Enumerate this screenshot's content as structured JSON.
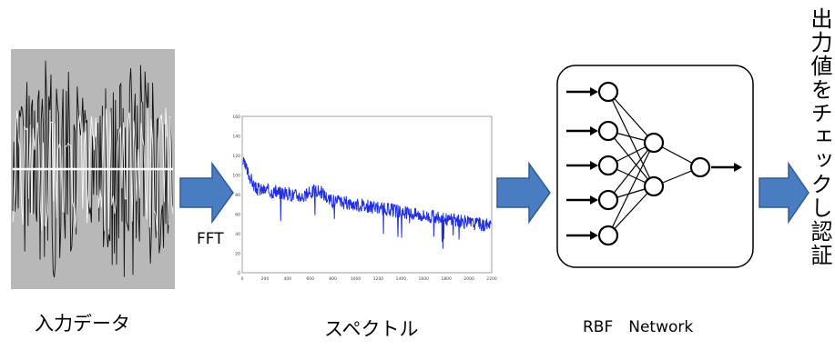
{
  "pipeline": {
    "input_label": "入力データ",
    "fft_label": "FFT",
    "spectrum_label": "スペクトル",
    "network_label": "RBF　Network",
    "output_label": "出力値をチェックし認証"
  },
  "spectrum_plot": {
    "y_ticks": [
      "160",
      "140",
      "120",
      "100",
      "80",
      "60",
      "40",
      "20",
      "0"
    ],
    "x_ticks": [
      "0",
      "200",
      "400",
      "600",
      "800",
      "1000",
      "1200",
      "1400",
      "1600",
      "1800",
      "2000",
      "2200"
    ]
  },
  "colors": {
    "arrow_fill": "#4a7cc1",
    "arrow_stroke": "#2f5b97",
    "waveform_bg": "#b8b8b8",
    "spectrum_line": "#1f2ee0"
  }
}
